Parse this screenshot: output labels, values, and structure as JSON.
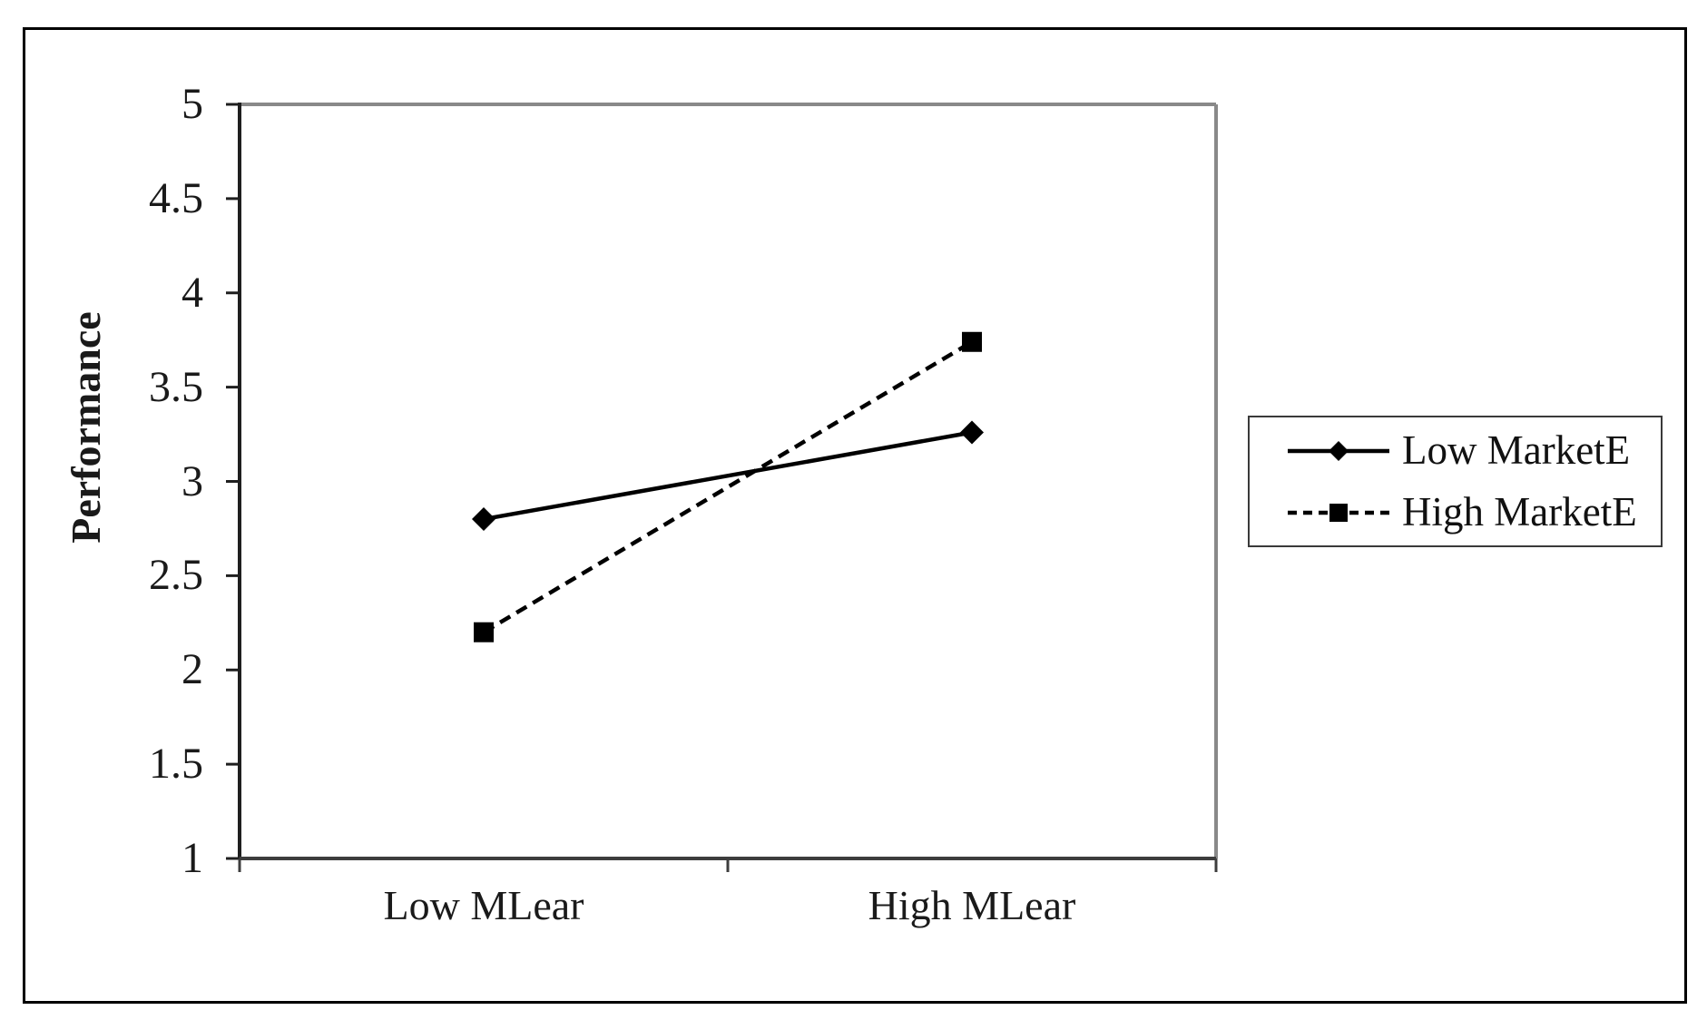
{
  "chart_data": {
    "type": "line",
    "categories": [
      "Low MLear",
      "High MLear"
    ],
    "series": [
      {
        "name": "Low MarketE",
        "values": [
          2.8,
          3.26
        ],
        "marker": "diamond",
        "line_style": "solid",
        "color": "#000000"
      },
      {
        "name": "High MarketE",
        "values": [
          2.2,
          3.74
        ],
        "marker": "square",
        "line_style": "dashed",
        "color": "#000000"
      }
    ],
    "title": "",
    "xlabel": "",
    "ylabel": "Performance",
    "ylim": [
      1,
      5
    ],
    "yticks": [
      "1",
      "1.5",
      "2",
      "2.5",
      "3",
      "3.5",
      "4",
      "4.5",
      "5"
    ],
    "grid": false,
    "legend_position": "right",
    "colors": {
      "axis_left": "#1f1f1f",
      "axis_bottom": "#3d3d3d",
      "plot_border": "#898989",
      "text": "#1a1a1a",
      "figure_border": "#000000"
    }
  }
}
